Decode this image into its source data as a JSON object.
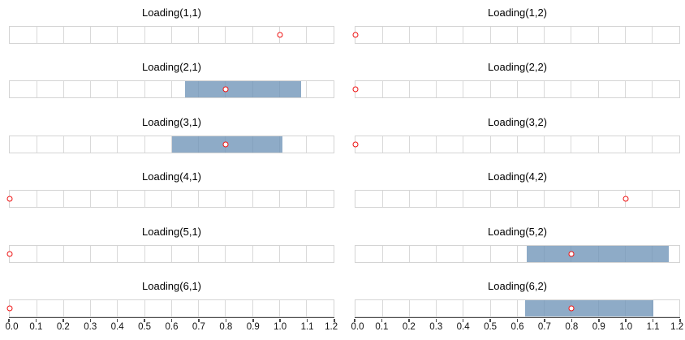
{
  "chart_data": {
    "type": "interval-strip-lattice",
    "description": "Posterior loading estimates: open red circle = point estimate, blue band = interval",
    "axis": {
      "min": 0.0,
      "max": 1.2,
      "step": 0.1,
      "ticks": [
        "0.0",
        "0.1",
        "0.2",
        "0.3",
        "0.4",
        "0.5",
        "0.6",
        "0.7",
        "0.8",
        "0.9",
        "1.0",
        "1.1",
        "1.2"
      ]
    },
    "columns": [
      {
        "panels": [
          {
            "title": "Loading(1,1)",
            "point": 1.0,
            "interval": null
          },
          {
            "title": "Loading(2,1)",
            "point": 0.8,
            "interval": [
              0.65,
              1.08
            ]
          },
          {
            "title": "Loading(3,1)",
            "point": 0.8,
            "interval": [
              0.6,
              1.01
            ]
          },
          {
            "title": "Loading(4,1)",
            "point": 0.0,
            "interval": null
          },
          {
            "title": "Loading(5,1)",
            "point": 0.0,
            "interval": null
          },
          {
            "title": "Loading(6,1)",
            "point": 0.0,
            "interval": null
          }
        ]
      },
      {
        "panels": [
          {
            "title": "Loading(1,2)",
            "point": 0.0,
            "interval": null
          },
          {
            "title": "Loading(2,2)",
            "point": 0.0,
            "interval": null
          },
          {
            "title": "Loading(3,2)",
            "point": 0.0,
            "interval": null
          },
          {
            "title": "Loading(4,2)",
            "point": 1.0,
            "interval": null
          },
          {
            "title": "Loading(5,2)",
            "point": 0.8,
            "interval": [
              0.635,
              1.16
            ]
          },
          {
            "title": "Loading(6,2)",
            "point": 0.8,
            "interval": [
              0.63,
              1.105
            ]
          }
        ]
      }
    ],
    "colors": {
      "band": "rgba(110,147,183,0.78)",
      "band_solid_appearance": "#92aec9",
      "marker_stroke": "#ee1111",
      "marker_fill": "#ffffff",
      "gridline": "#d9d9d9",
      "strip_border": "#d4d4d4",
      "axis": "#4a4a4a"
    }
  }
}
